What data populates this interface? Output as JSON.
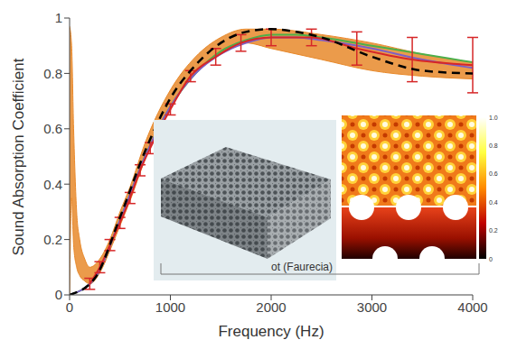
{
  "chart_data": {
    "type": "line",
    "x_label": "Frequency (Hz)",
    "y_label": "Sound Absorption Coefficient",
    "xlim": [
      0,
      4000
    ],
    "xticks": [
      0,
      1000,
      2000,
      3000,
      4000
    ],
    "ylim": [
      0,
      1
    ],
    "yticks": [
      0,
      0.2,
      0.4,
      0.6,
      0.8,
      1
    ],
    "grid": false,
    "series": [
      {
        "type": "area_range",
        "color": "#e8892b",
        "x": [
          0,
          20,
          40,
          70,
          100,
          150,
          200,
          300,
          400,
          500,
          600,
          750,
          1000,
          1250,
          1500,
          1750,
          2000,
          2500,
          3000,
          3500,
          4000
        ],
        "lower": [
          0,
          0.35,
          0.18,
          0.1,
          0.07,
          0.05,
          0.04,
          0.08,
          0.16,
          0.25,
          0.34,
          0.49,
          0.68,
          0.8,
          0.87,
          0.91,
          0.89,
          0.85,
          0.81,
          0.79,
          0.78
        ],
        "upper": [
          0.97,
          0.9,
          0.6,
          0.3,
          0.2,
          0.13,
          0.1,
          0.13,
          0.2,
          0.3,
          0.39,
          0.55,
          0.74,
          0.86,
          0.93,
          0.96,
          0.96,
          0.94,
          0.91,
          0.87,
          0.84
        ]
      },
      {
        "type": "line",
        "color": "#4daf4a",
        "line_style": "solid",
        "x": [
          0,
          250,
          500,
          750,
          1000,
          1250,
          1500,
          1750,
          2000,
          2250,
          2500,
          3000,
          3500,
          4000
        ],
        "values": [
          0,
          0.06,
          0.27,
          0.5,
          0.68,
          0.8,
          0.88,
          0.92,
          0.94,
          0.94,
          0.93,
          0.9,
          0.87,
          0.84
        ]
      },
      {
        "type": "line",
        "color": "#7b5fc8",
        "line_style": "solid",
        "x": [
          0,
          250,
          500,
          750,
          1000,
          1250,
          1500,
          1750,
          2000,
          2250,
          2500,
          3000,
          3500,
          4000
        ],
        "values": [
          0,
          0.06,
          0.27,
          0.5,
          0.68,
          0.8,
          0.87,
          0.91,
          0.93,
          0.93,
          0.92,
          0.89,
          0.85,
          0.82
        ]
      },
      {
        "type": "line",
        "color": "#d62728",
        "line_style": "solid",
        "x": [
          200,
          300,
          400,
          500,
          600,
          700,
          800,
          1000,
          1200,
          1450,
          1700,
          2000,
          2400,
          2850,
          3400,
          4000
        ],
        "values": [
          0.04,
          0.1,
          0.18,
          0.26,
          0.35,
          0.45,
          0.53,
          0.67,
          0.79,
          0.86,
          0.91,
          0.93,
          0.93,
          0.89,
          0.85,
          0.83
        ],
        "error": [
          0.02,
          0.02,
          0.02,
          0.02,
          0.02,
          0.02,
          0.02,
          0.02,
          0.02,
          0.03,
          0.03,
          0.03,
          0.03,
          0.06,
          0.08,
          0.1
        ]
      },
      {
        "type": "line",
        "color": "#000000",
        "line_style": "dashed",
        "x": [
          0,
          250,
          500,
          750,
          1000,
          1250,
          1500,
          1750,
          2000,
          2250,
          2500,
          3000,
          3500,
          4000
        ],
        "values": [
          0,
          0.06,
          0.28,
          0.52,
          0.71,
          0.83,
          0.91,
          0.95,
          0.96,
          0.95,
          0.93,
          0.86,
          0.81,
          0.8
        ]
      }
    ],
    "annotations": [
      "ot (Faurecia)"
    ],
    "colorbar": {
      "range": [
        0,
        1
      ],
      "ticks": [
        {
          "value": 1,
          "label": "1.0"
        },
        0.8,
        0.6,
        0.4,
        0.2,
        0
      ]
    }
  }
}
